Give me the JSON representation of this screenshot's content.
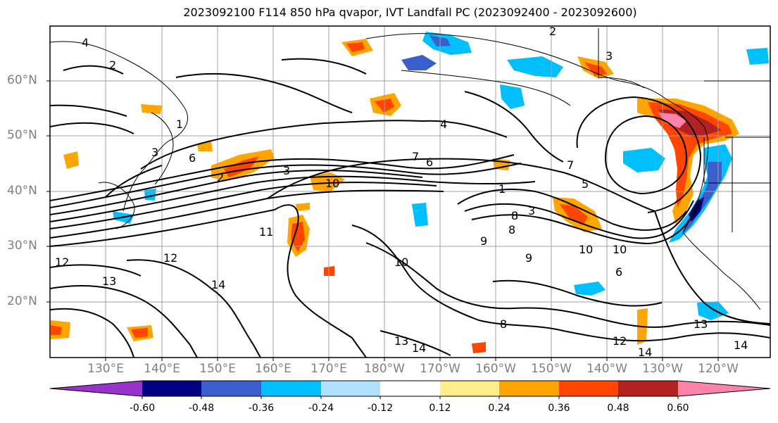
{
  "title": "2023092100 F114 850 hPa qvapor, IVT Landfall PC (2023092400 - 2023092600)",
  "lat_labels": [
    "60°N",
    "50°N",
    "40°N",
    "30°N",
    "20°N"
  ],
  "lon_labels": [
    "130°E",
    "140°E",
    "150°E",
    "160°E",
    "170°E",
    "180°W",
    "170°W",
    "160°W",
    "150°W",
    "140°W",
    "130°W",
    "120°W"
  ],
  "colorbar": {
    "colors": [
      "#9932cc",
      "#000080",
      "#3a5fcd",
      "#00bfff",
      "#b0e2ff",
      "#ffffff",
      "#ffec8b",
      "#ffa500",
      "#ff4500",
      "#b22222",
      "#ff82ab"
    ],
    "tick_labels": [
      "-0.60",
      "-0.48",
      "-0.36",
      "-0.24",
      "-0.12",
      "0.12",
      "0.24",
      "0.36",
      "0.48",
      "0.60"
    ]
  },
  "contour_labels": [
    "4",
    "2",
    "2",
    "3",
    "1",
    "3",
    "4",
    "7",
    "6",
    "5",
    "2",
    "3",
    "7",
    "6",
    "10",
    "9",
    "8",
    "10",
    "1",
    "3",
    "8",
    "11",
    "12",
    "13",
    "14",
    "13",
    "12",
    "10",
    "9",
    "6",
    "10",
    "13",
    "14",
    "12",
    "14",
    "14",
    "8"
  ]
}
